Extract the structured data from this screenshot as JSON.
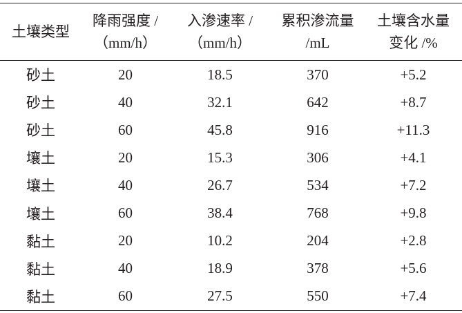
{
  "table": {
    "header": [
      [
        "土壤类型"
      ],
      [
        "降雨强度 /",
        "（mm/h）"
      ],
      [
        "入渗速率 /",
        "（mm/h）"
      ],
      [
        "累积渗流量",
        "/mL"
      ],
      [
        "土壤含水量",
        "变化 /%"
      ]
    ],
    "rows": [
      [
        "砂土",
        "20",
        "18.5",
        "370",
        "+5.2"
      ],
      [
        "砂土",
        "40",
        "32.1",
        "642",
        "+8.7"
      ],
      [
        "砂土",
        "60",
        "45.8",
        "916",
        "+11.3"
      ],
      [
        "壤土",
        "20",
        "15.3",
        "306",
        "+4.1"
      ],
      [
        "壤土",
        "40",
        "26.7",
        "534",
        "+7.2"
      ],
      [
        "壤土",
        "60",
        "38.4",
        "768",
        "+9.8"
      ],
      [
        "黏土",
        "20",
        "10.2",
        "204",
        "+2.8"
      ],
      [
        "黏土",
        "40",
        "18.9",
        "378",
        "+5.6"
      ],
      [
        "黏土",
        "60",
        "27.5",
        "550",
        "+7.4"
      ]
    ]
  }
}
